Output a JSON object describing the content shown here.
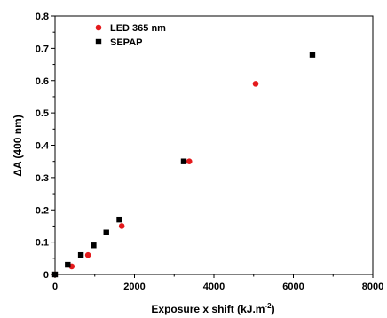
{
  "chart_data": {
    "type": "scatter",
    "title": "",
    "xlabel": "Exposure x shift (kJ.m",
    "xlabel_sup": "-2",
    "xlabel_close": ")",
    "ylabel": "ΔA (400 nm)",
    "xlim": [
      0,
      8000
    ],
    "ylim": [
      0,
      0.8
    ],
    "x_ticks": [
      0,
      2000,
      4000,
      6000,
      8000
    ],
    "x_tick_labels": [
      "0",
      "2000",
      "4000",
      "6000",
      "8000"
    ],
    "y_ticks": [
      0,
      0.1,
      0.2,
      0.3,
      0.4,
      0.5,
      0.6,
      0.7,
      0.8
    ],
    "y_tick_labels": [
      "0",
      "0.1",
      "0.2",
      "0.3",
      "0.4",
      "0.5",
      "0.6",
      "0.7",
      "0.8"
    ],
    "grid": false,
    "legend_position": "top-left",
    "series": [
      {
        "name": "LED 365 nm",
        "marker": "circle",
        "color": "#e41a1c",
        "points": [
          [
            0,
            0.0
          ],
          [
            420,
            0.025
          ],
          [
            830,
            0.06
          ],
          [
            1680,
            0.15
          ],
          [
            3380,
            0.35
          ],
          [
            5050,
            0.59
          ]
        ]
      },
      {
        "name": "SEPAP",
        "marker": "square",
        "color": "#000000",
        "points": [
          [
            0,
            0.0
          ],
          [
            320,
            0.03
          ],
          [
            650,
            0.06
          ],
          [
            970,
            0.09
          ],
          [
            1290,
            0.13
          ],
          [
            1620,
            0.17
          ],
          [
            3240,
            0.35
          ],
          [
            6480,
            0.68
          ]
        ]
      }
    ]
  }
}
